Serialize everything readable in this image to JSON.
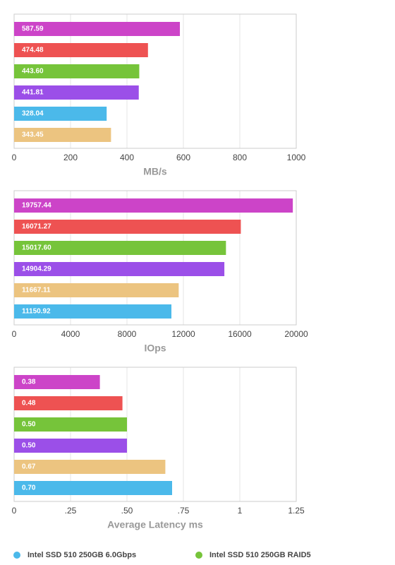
{
  "chart_data": [
    {
      "type": "hbar",
      "xlabel": "MB/s",
      "values": [
        587.59,
        474.48,
        443.6,
        441.81,
        328.04,
        343.45
      ],
      "value_labels": [
        "587.59",
        "474.48",
        "443.60",
        "441.81",
        "328.04",
        "343.45"
      ],
      "colors": [
        "#cc44c8",
        "#ee5252",
        "#76c43a",
        "#9b4fe8",
        "#4bb9ea",
        "#ecc480"
      ],
      "xlim": [
        0,
        1000
      ],
      "xticks": [
        0,
        200,
        400,
        600,
        800,
        1000
      ],
      "grid": true
    },
    {
      "type": "hbar",
      "xlabel": "IOps",
      "values": [
        19757.44,
        16071.27,
        15017.6,
        14904.29,
        11667.11,
        11150.92
      ],
      "value_labels": [
        "19757.44",
        "16071.27",
        "15017.60",
        "14904.29",
        "11667.11",
        "11150.92"
      ],
      "colors": [
        "#cc44c8",
        "#ee5252",
        "#76c43a",
        "#9b4fe8",
        "#ecc480",
        "#4bb9ea"
      ],
      "xlim": [
        0,
        20000
      ],
      "xticks": [
        0,
        4000,
        8000,
        12000,
        16000,
        20000
      ],
      "grid": true
    },
    {
      "type": "hbar",
      "xlabel": "Average Latency ms",
      "values": [
        0.38,
        0.48,
        0.5,
        0.5,
        0.67,
        0.7
      ],
      "value_labels": [
        "0.38",
        "0.48",
        "0.50",
        "0.50",
        "0.67",
        "0.70"
      ],
      "colors": [
        "#cc44c8",
        "#ee5252",
        "#76c43a",
        "#9b4fe8",
        "#ecc480",
        "#4bb9ea"
      ],
      "xlim": [
        0,
        1.25
      ],
      "xticks": [
        0,
        {
          "value": 0.25,
          "label": ".25"
        },
        {
          "value": 0.5,
          "label": ".50"
        },
        {
          "value": 0.75,
          "label": ".75"
        },
        1,
        1.25
      ],
      "grid": true
    }
  ],
  "legend": [
    {
      "name": "Intel SSD 510 250GB 6.0Gbps",
      "color": "#4bb9ea"
    },
    {
      "name": "Intel SSD 510 250GB RAID5",
      "color": "#76c43a"
    }
  ]
}
